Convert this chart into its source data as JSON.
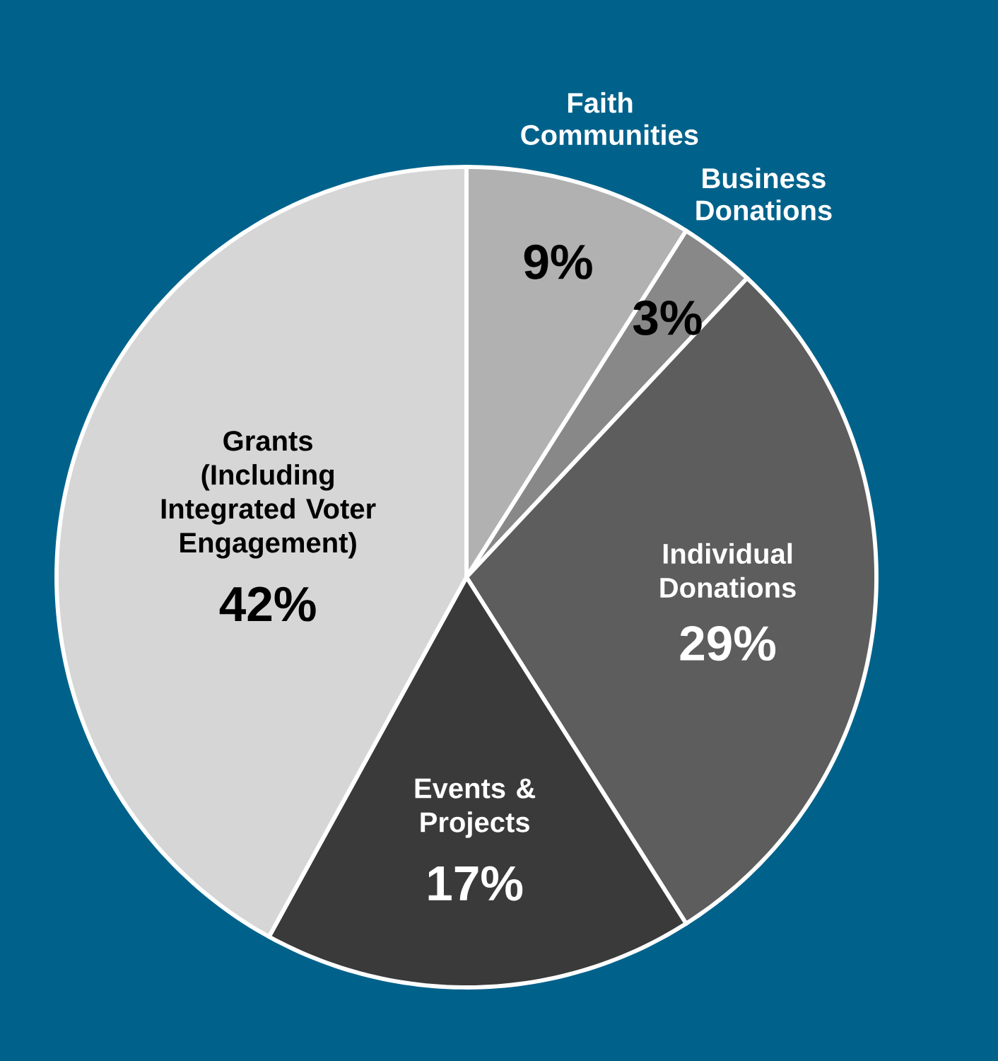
{
  "chart_data": {
    "type": "pie",
    "categories": [
      "Faith Communities",
      "Business Donations",
      "Individual Donations",
      "Events & Projects",
      "Grants (Including Integrated Voter Engagement)"
    ],
    "values": [
      9,
      3,
      29,
      17,
      42
    ],
    "value_labels": [
      "9%",
      "3%",
      "29%",
      "17%",
      "42%"
    ],
    "colors": [
      "#b1b1b1",
      "#888888",
      "#5d5d5d",
      "#3a3a3a",
      "#d6d6d6"
    ]
  }
}
